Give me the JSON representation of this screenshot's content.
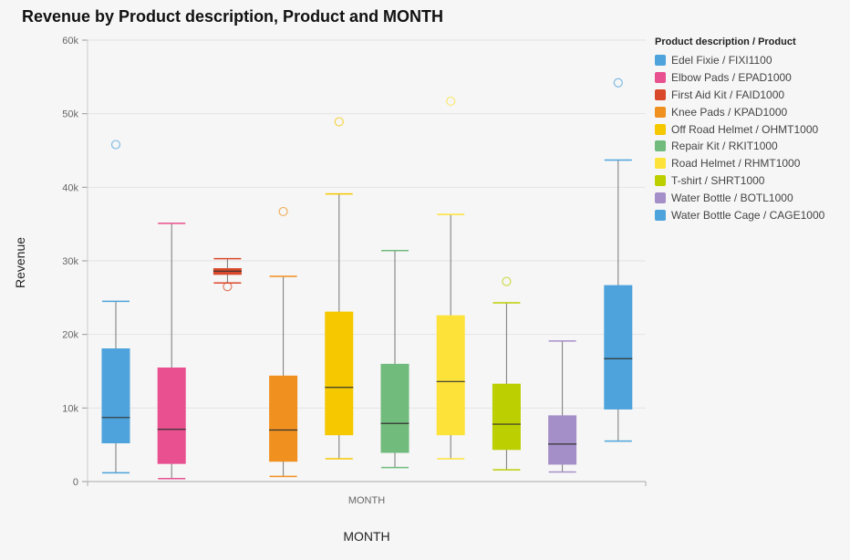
{
  "chart_data": {
    "type": "boxplot",
    "title": "Revenue by Product description, Product and MONTH",
    "ylabel": "Revenue",
    "xlabel": "MONTH",
    "x_tick_label": "MONTH",
    "ylim": [
      0,
      60000
    ],
    "y_ticks": [
      {
        "value": 0,
        "label": "0"
      },
      {
        "value": 10000,
        "label": "10k"
      },
      {
        "value": 20000,
        "label": "20k"
      },
      {
        "value": 30000,
        "label": "30k"
      },
      {
        "value": 40000,
        "label": "40k"
      },
      {
        "value": 50000,
        "label": "50k"
      },
      {
        "value": 60000,
        "label": "60k"
      }
    ],
    "grid": true,
    "legend_title": "Product description / Product",
    "legend_position": "right",
    "series": [
      {
        "name": "Edel Fixie / FIXI1100",
        "color": "#4ea3dc",
        "min": 1200,
        "q1": 5200,
        "median": 8700,
        "q3": 18100,
        "max": 24500,
        "outliers": [
          45800
        ]
      },
      {
        "name": "Elbow Pads / EPAD1000",
        "color": "#e8508f",
        "min": 400,
        "q1": 2400,
        "median": 7100,
        "q3": 15500,
        "max": 35100,
        "outliers": []
      },
      {
        "name": "First Aid Kit / FAID1000",
        "color": "#d9482a",
        "min": 27000,
        "q1": 28100,
        "median": 28600,
        "q3": 29000,
        "max": 30300,
        "outliers": [
          26500
        ]
      },
      {
        "name": "Knee Pads / KPAD1000",
        "color": "#f0901f",
        "min": 700,
        "q1": 2700,
        "median": 7000,
        "q3": 14400,
        "max": 27900,
        "outliers": [
          36700
        ]
      },
      {
        "name": "Off Road Helmet / OHMT1000",
        "color": "#f5c800",
        "min": 3100,
        "q1": 6300,
        "median": 12800,
        "q3": 23100,
        "max": 39100,
        "outliers": [
          48900
        ]
      },
      {
        "name": "Repair Kit / RKIT1000",
        "color": "#71bb7c",
        "min": 1900,
        "q1": 3900,
        "median": 7900,
        "q3": 16000,
        "max": 31400,
        "outliers": []
      },
      {
        "name": "Road Helmet / RHMT1000",
        "color": "#fde23a",
        "min": 3100,
        "q1": 6300,
        "median": 13600,
        "q3": 22600,
        "max": 36300,
        "outliers": [
          51700
        ]
      },
      {
        "name": "T-shirt / SHRT1000",
        "color": "#bccf00",
        "min": 1600,
        "q1": 4300,
        "median": 7800,
        "q3": 13300,
        "max": 24300,
        "outliers": [
          27200
        ]
      },
      {
        "name": "Water Bottle / BOTL1000",
        "color": "#a58fc8",
        "min": 1300,
        "q1": 2300,
        "median": 5100,
        "q3": 9000,
        "max": 19100,
        "outliers": []
      },
      {
        "name": "Water Bottle Cage / CAGE1000",
        "color": "#4ea3dc",
        "min": 5500,
        "q1": 9800,
        "median": 16700,
        "q3": 26700,
        "max": 43700,
        "outliers": [
          54200
        ]
      }
    ]
  }
}
